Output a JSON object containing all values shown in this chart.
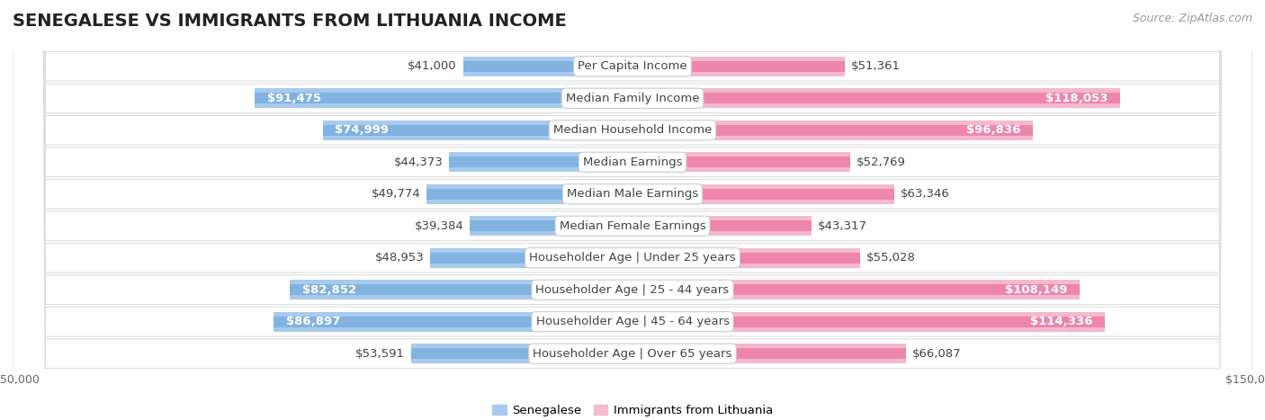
{
  "title": "SENEGALESE VS IMMIGRANTS FROM LITHUANIA INCOME",
  "source": "Source: ZipAtlas.com",
  "categories": [
    "Per Capita Income",
    "Median Family Income",
    "Median Household Income",
    "Median Earnings",
    "Median Male Earnings",
    "Median Female Earnings",
    "Householder Age | Under 25 years",
    "Householder Age | 25 - 44 years",
    "Householder Age | 45 - 64 years",
    "Householder Age | Over 65 years"
  ],
  "senegalese": [
    41000,
    91475,
    74999,
    44373,
    49774,
    39384,
    48953,
    82852,
    86897,
    53591
  ],
  "lithuania": [
    51361,
    118053,
    96836,
    52769,
    63346,
    43317,
    55028,
    108149,
    114336,
    66087
  ],
  "senegalese_labels": [
    "$41,000",
    "$91,475",
    "$74,999",
    "$44,373",
    "$49,774",
    "$39,384",
    "$48,953",
    "$82,852",
    "$86,897",
    "$53,591"
  ],
  "lithuania_labels": [
    "$51,361",
    "$118,053",
    "$96,836",
    "$52,769",
    "$63,346",
    "$43,317",
    "$55,028",
    "$108,149",
    "$114,336",
    "$66,087"
  ],
  "senegalese_color_light": "#A8CAEC",
  "senegalese_color_dark": "#5B9BD5",
  "lithuania_color_light": "#F4B8CF",
  "lithuania_color_dark": "#E8538A",
  "row_bg_color": "#F2F2F2",
  "row_border_color": "#DDDDDD",
  "max_val": 150000,
  "title_fontsize": 14,
  "label_fontsize": 9.5,
  "tick_fontsize": 9,
  "legend_fontsize": 9.5,
  "source_fontsize": 9,
  "inside_label_threshold": 70000
}
